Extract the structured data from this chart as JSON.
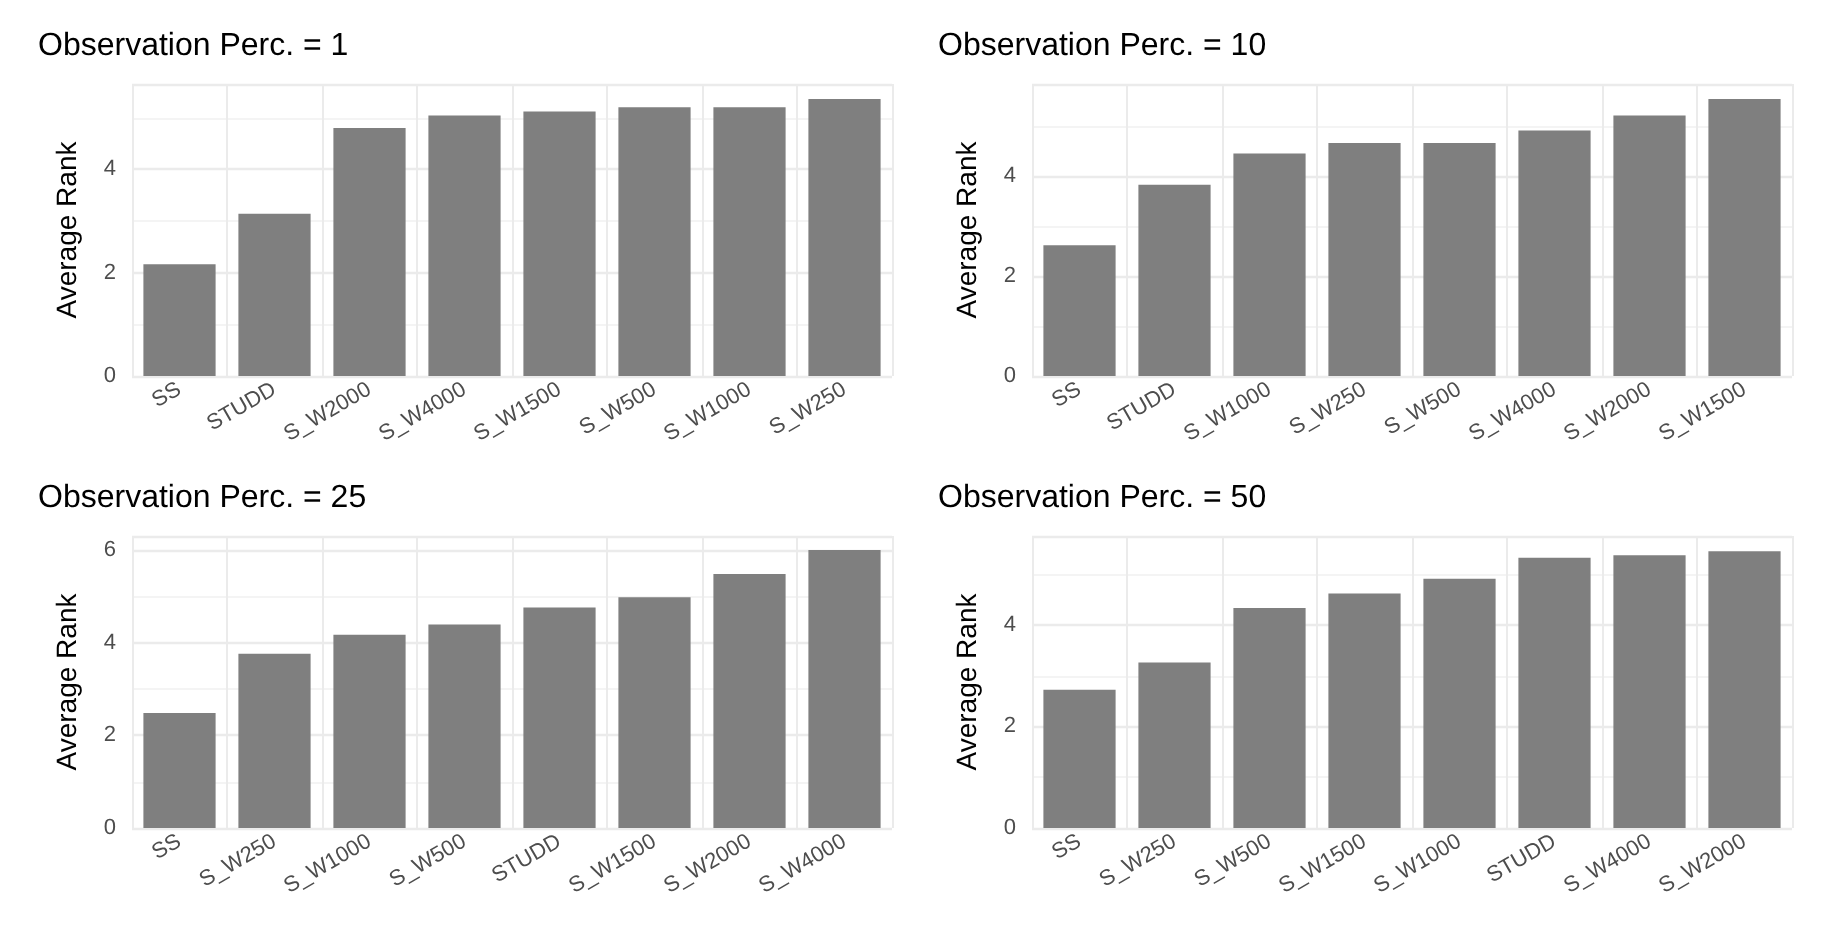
{
  "chart_data": [
    {
      "type": "bar",
      "title": "Observation Perc. = 1",
      "ylabel": "Average Rank",
      "categories": [
        "SS",
        "STUDD",
        "S_W2000",
        "S_W4000",
        "S_W1500",
        "S_W500",
        "S_W1000",
        "S_W250"
      ],
      "values": [
        2.16,
        3.14,
        4.8,
        5.04,
        5.12,
        5.2,
        5.2,
        5.36
      ],
      "color": "#7f7f7f",
      "ylim": [
        0,
        5.65
      ],
      "yticks": [
        0,
        2,
        4
      ],
      "grid": true
    },
    {
      "type": "bar",
      "title": "Observation Perc. = 10",
      "ylabel": "Average Rank",
      "categories": [
        "SS",
        "STUDD",
        "S_W1000",
        "S_W250",
        "S_W500",
        "S_W4000",
        "S_W2000",
        "S_W1500"
      ],
      "values": [
        2.62,
        3.83,
        4.46,
        4.67,
        4.67,
        4.92,
        5.22,
        5.55
      ],
      "color": "#7f7f7f",
      "ylim": [
        0,
        5.85
      ],
      "yticks": [
        0,
        2,
        4
      ],
      "grid": true
    },
    {
      "type": "bar",
      "title": "Observation Perc. = 25",
      "ylabel": "Average Rank",
      "categories": [
        "SS",
        "S_W250",
        "S_W1000",
        "S_W500",
        "STUDD",
        "S_W1500",
        "S_W2000",
        "S_W4000"
      ],
      "values": [
        2.48,
        3.76,
        4.17,
        4.39,
        4.76,
        4.98,
        5.48,
        6.0
      ],
      "color": "#7f7f7f",
      "ylim": [
        0,
        6.3
      ],
      "yticks": [
        0,
        2,
        4,
        6
      ],
      "grid": true
    },
    {
      "type": "bar",
      "title": "Observation Perc. = 50",
      "ylabel": "Average Rank",
      "categories": [
        "SS",
        "S_W250",
        "S_W500",
        "S_W1500",
        "S_W1000",
        "STUDD",
        "S_W4000",
        "S_W2000"
      ],
      "values": [
        2.72,
        3.26,
        4.33,
        4.62,
        4.91,
        5.32,
        5.37,
        5.45
      ],
      "color": "#7f7f7f",
      "ylim": [
        0,
        5.75
      ],
      "yticks": [
        0,
        2,
        4
      ],
      "grid": true
    }
  ]
}
